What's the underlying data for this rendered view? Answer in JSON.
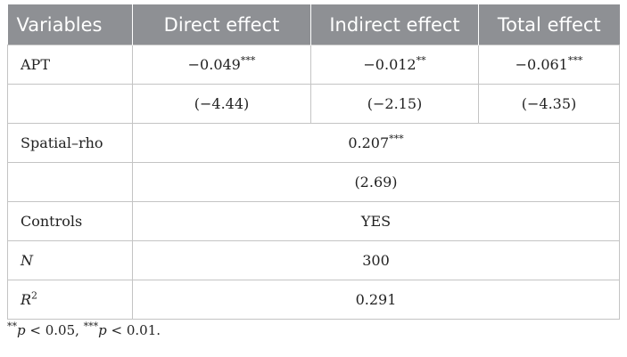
{
  "table": {
    "headers": [
      "Variables",
      "Direct effect",
      "Indirect effect",
      "Total effect"
    ],
    "apt": {
      "label": "APT",
      "direct": "−0.049",
      "direct_stars": "***",
      "indirect": "−0.012",
      "indirect_stars": "**",
      "total": "−0.061",
      "total_stars": "***"
    },
    "apt_t": {
      "direct": "(−4.44)",
      "indirect": "(−2.15)",
      "total": "(−4.35)"
    },
    "rho": {
      "label": "Spatial–rho",
      "value": "0.207",
      "stars": "***",
      "t": "(2.69)"
    },
    "controls": {
      "label": "Controls",
      "value": "YES"
    },
    "n": {
      "label": "N",
      "value": "300"
    },
    "r2": {
      "label": "R",
      "sup": "2",
      "value": "0.291"
    }
  },
  "footnote": {
    "stars1": "**",
    "p1": "p",
    "rest1": " < 0.05, ",
    "stars2": "***",
    "p2": "p",
    "rest2": " < 0.01."
  }
}
